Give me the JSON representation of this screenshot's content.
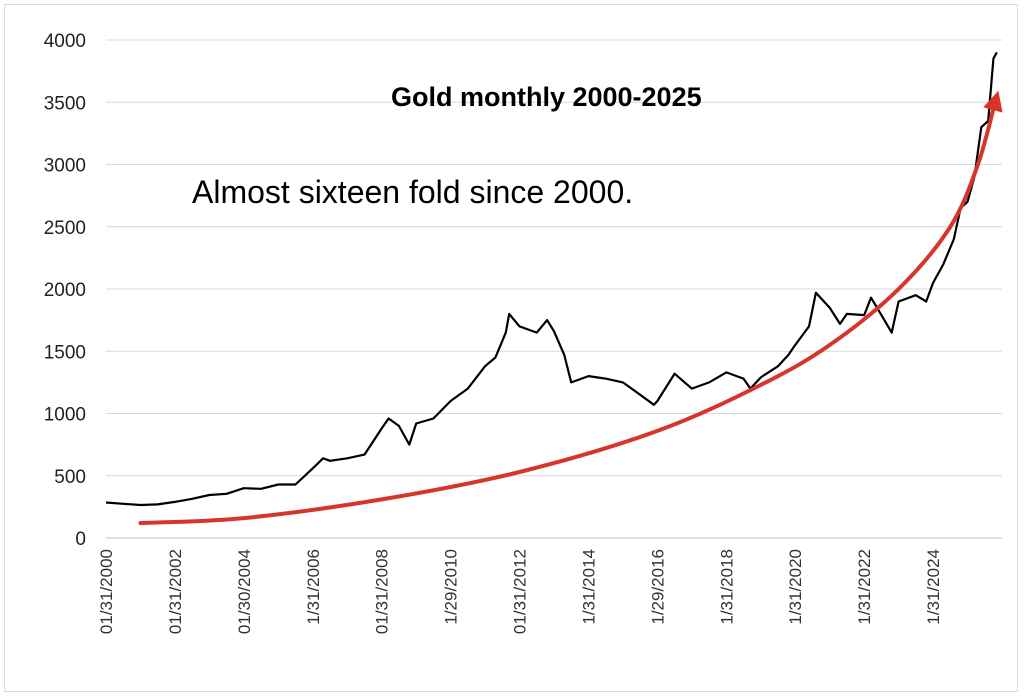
{
  "chart_data": {
    "type": "line",
    "title": "Gold monthly 2000-2025",
    "annotation": "Almost sixteen fold since 2000.",
    "xlabel": "",
    "ylabel": "",
    "ylim": [
      0,
      4000
    ],
    "yticks": [
      0,
      500,
      1000,
      1500,
      2000,
      2500,
      3000,
      3500,
      4000
    ],
    "xtick_labels": [
      "01/31/2000",
      "01/31/2002",
      "01/30/2004",
      "1/31/2006",
      "01/31/2008",
      "1/29/2010",
      "01/31/2012",
      "1/31/2014",
      "1/29/2016",
      "1/31/2018",
      "1/31/2020",
      "1/31/2022",
      "1/31/2024"
    ],
    "grid": "horizontal",
    "legend": "none",
    "line_color": "#000000",
    "trend_color": "#d7352b",
    "series": [
      {
        "x": [
          2000.0,
          2000.5,
          2001.0,
          2001.5,
          2002.0,
          2002.5,
          2003.0,
          2003.5,
          2004.0,
          2004.5,
          2005.0,
          2005.5,
          2006.0,
          2006.3,
          2006.5,
          2007.0,
          2007.5,
          2008.0,
          2008.2,
          2008.5,
          2008.8,
          2009.0,
          2009.5,
          2010.0,
          2010.5,
          2011.0,
          2011.3,
          2011.6,
          2011.7,
          2012.0,
          2012.5,
          2012.8,
          2013.0,
          2013.3,
          2013.5,
          2014.0,
          2014.5,
          2015.0,
          2015.5,
          2015.9,
          2016.0,
          2016.5,
          2017.0,
          2017.5,
          2018.0,
          2018.5,
          2018.7,
          2019.0,
          2019.5,
          2019.8,
          2020.0,
          2020.4,
          2020.6,
          2021.0,
          2021.3,
          2021.5,
          2022.0,
          2022.2,
          2022.5,
          2022.8,
          2023.0,
          2023.5,
          2023.8,
          2024.0,
          2024.3,
          2024.6,
          2024.8,
          2025.0,
          2025.2,
          2025.4,
          2025.6,
          2025.75,
          2025.85
        ],
        "values": [
          285,
          275,
          265,
          270,
          290,
          315,
          345,
          355,
          400,
          395,
          430,
          430,
          560,
          640,
          620,
          640,
          670,
          880,
          960,
          900,
          750,
          920,
          960,
          1100,
          1200,
          1380,
          1450,
          1650,
          1800,
          1700,
          1650,
          1750,
          1660,
          1470,
          1250,
          1300,
          1280,
          1250,
          1150,
          1070,
          1100,
          1320,
          1200,
          1250,
          1330,
          1280,
          1200,
          1290,
          1380,
          1470,
          1550,
          1700,
          1970,
          1850,
          1720,
          1800,
          1790,
          1930,
          1790,
          1650,
          1900,
          1950,
          1900,
          2050,
          2200,
          2400,
          2650,
          2700,
          2900,
          3300,
          3350,
          3850,
          3900
        ]
      },
      {
        "values_note_free": true,
        "x": [
          2001.0,
          2004.0,
          2008.0,
          2012.0,
          2016.0,
          2019.0,
          2021.0,
          2023.0,
          2024.5,
          2025.3,
          2025.8
        ],
        "values": [
          120,
          160,
          310,
          530,
          860,
          1230,
          1550,
          2000,
          2500,
          3000,
          3500
        ]
      }
    ]
  }
}
